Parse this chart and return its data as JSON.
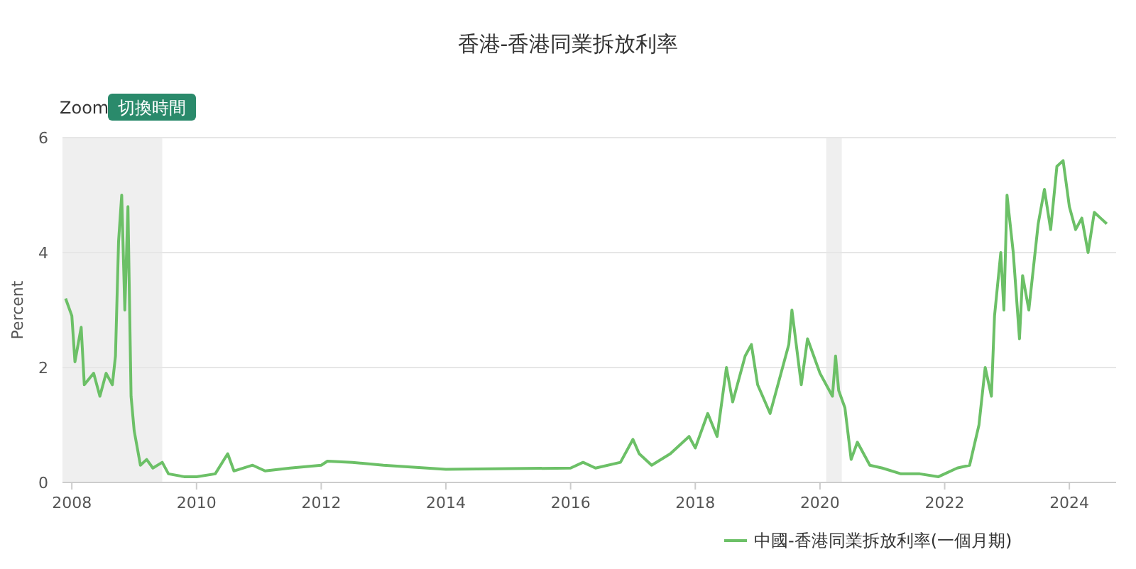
{
  "chart_data": {
    "type": "line",
    "title": "香港-香港同業拆放利率",
    "ylabel": "Percent",
    "annotations": [
      "Zoom",
      "切換時間"
    ],
    "xlim": [
      2007.85,
      2024.75
    ],
    "xticks": [
      2008,
      2010,
      2012,
      2014,
      2016,
      2018,
      2020,
      2022,
      2024
    ],
    "ylim": [
      0,
      6
    ],
    "yticks": [
      0,
      2,
      4,
      6
    ],
    "grid": "y",
    "legend": "bottom right",
    "marker": "none",
    "line_style": "solid",
    "bands": [
      {
        "axis": "x",
        "from": 2007.85,
        "to": 2009.45,
        "color": "#efefef"
      },
      {
        "axis": "x",
        "from": 2020.1,
        "to": 2020.35,
        "color": "#efefef"
      }
    ],
    "series": [
      {
        "name": "中國-香港同業拆放利率(一個月期)",
        "color": "#6cc067",
        "x": [
          2007.9,
          2008.0,
          2008.05,
          2008.15,
          2008.2,
          2008.35,
          2008.45,
          2008.55,
          2008.65,
          2008.7,
          2008.75,
          2008.8,
          2008.85,
          2008.9,
          2008.95,
          2009.0,
          2009.05,
          2009.1,
          2009.2,
          2009.3,
          2009.45,
          2009.55,
          2009.8,
          2010.0,
          2010.3,
          2010.5,
          2010.6,
          2010.9,
          2011.1,
          2011.5,
          2012.0,
          2012.1,
          2012.5,
          2013.0,
          2014.0,
          2015.0,
          2016.0,
          2016.2,
          2016.4,
          2016.8,
          2017.0,
          2017.1,
          2017.3,
          2017.6,
          2017.9,
          2018.0,
          2018.2,
          2018.35,
          2018.5,
          2018.6,
          2018.8,
          2018.9,
          2019.0,
          2019.2,
          2019.35,
          2019.5,
          2019.55,
          2019.7,
          2019.8,
          2019.9,
          2020.0,
          2020.2,
          2020.25,
          2020.3,
          2020.4,
          2020.5,
          2020.6,
          2020.8,
          2021.0,
          2021.3,
          2021.6,
          2021.9,
          2022.0,
          2022.2,
          2022.4,
          2022.55,
          2022.65,
          2022.75,
          2022.8,
          2022.9,
          2022.95,
          2023.0,
          2023.1,
          2023.2,
          2023.25,
          2023.35,
          2023.5,
          2023.6,
          2023.7,
          2023.8,
          2023.9,
          2024.0,
          2024.1,
          2024.2,
          2024.3,
          2024.4,
          2024.5,
          2024.6
        ],
        "values": [
          3.2,
          2.9,
          2.1,
          2.7,
          1.7,
          1.9,
          1.5,
          1.9,
          1.7,
          2.2,
          4.2,
          5.0,
          3.0,
          4.8,
          1.5,
          0.9,
          0.6,
          0.3,
          0.4,
          0.25,
          0.35,
          0.15,
          0.1,
          0.1,
          0.15,
          0.5,
          0.2,
          0.3,
          0.2,
          0.25,
          0.3,
          0.37,
          0.35,
          0.3,
          0.23,
          0.24,
          0.25,
          0.35,
          0.25,
          0.35,
          0.75,
          0.5,
          0.3,
          0.5,
          0.8,
          0.6,
          1.2,
          0.8,
          2.0,
          1.4,
          2.2,
          2.4,
          1.7,
          1.2,
          1.8,
          2.4,
          3.0,
          1.7,
          2.5,
          2.2,
          1.9,
          1.5,
          2.2,
          1.6,
          1.3,
          0.4,
          0.7,
          0.3,
          0.25,
          0.15,
          0.15,
          0.1,
          0.15,
          0.25,
          0.3,
          1.0,
          2.0,
          1.5,
          2.9,
          4.0,
          3.0,
          5.0,
          4.0,
          2.5,
          3.6,
          3.0,
          4.5,
          5.1,
          4.4,
          5.5,
          5.6,
          4.8,
          4.4,
          4.6,
          4.0,
          4.7,
          4.6,
          4.5
        ]
      }
    ]
  }
}
